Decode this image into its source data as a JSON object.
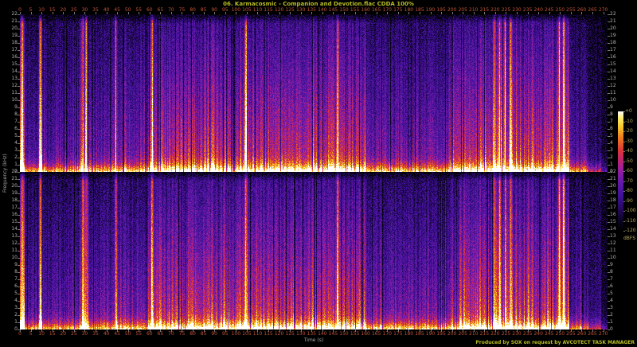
{
  "header": {
    "title": "06. Karmacosmic - Companion and Devotion.flac CDDA 100%"
  },
  "footer": {
    "credit": "Produced by SOX on request by AVCOTECT TASK MANAGER"
  },
  "colors": {
    "background": "#000000",
    "title_text": "#b8bc22",
    "time_tick_text": "#c2553a",
    "freq_tick_text": "#b0b0b0",
    "axis_label_text": "#a8a8a8",
    "colorbar_tick_text": "#b3a95e",
    "credit_text": "#b8bc22",
    "tick_mark": "#7a7a7a"
  },
  "chart_data": {
    "type": "heatmap",
    "subtype": "stereo-audio-spectrogram",
    "title": "06. Karmacosmic - Companion and Devotion.flac CDDA 100%",
    "xlabel": "Time (s)",
    "ylabel": "Frequency (kHz)",
    "x_range_s": [
      0,
      272
    ],
    "x_tick_step_s": 5,
    "x_last_labeled_tick_s": 270,
    "y_range_khz": [
      0,
      22
    ],
    "y_tick_step_khz": 1,
    "channels": 2,
    "grid": false,
    "legend_position": "right-colorbar",
    "colorbar": {
      "label": "dBFS",
      "tick_values_db": [
        0,
        -10,
        -20,
        -30,
        -40,
        -50,
        -60,
        -70,
        -80,
        -90,
        -100,
        -110,
        -120
      ]
    },
    "palette_stops": [
      [
        0.0,
        "#000000"
      ],
      [
        0.08,
        "#0a0420"
      ],
      [
        0.18,
        "#26095e"
      ],
      [
        0.3,
        "#41129b"
      ],
      [
        0.42,
        "#6a1aa8"
      ],
      [
        0.52,
        "#9c1f9b"
      ],
      [
        0.6,
        "#c22667"
      ],
      [
        0.68,
        "#dd3935"
      ],
      [
        0.78,
        "#ef7b1d"
      ],
      [
        0.87,
        "#f6c627"
      ],
      [
        0.94,
        "#fbe96a"
      ],
      [
        1.0,
        "#ffffff"
      ]
    ],
    "envelope_segments": [
      [
        0,
        2.2,
        1.0
      ],
      [
        2.2,
        8.5,
        0.5
      ],
      [
        8.5,
        10.2,
        0.85
      ],
      [
        10.2,
        27,
        0.52
      ],
      [
        27,
        31.5,
        0.8
      ],
      [
        31.5,
        44,
        0.58
      ],
      [
        44,
        59,
        0.62
      ],
      [
        59,
        160,
        0.88
      ],
      [
        160,
        199,
        0.62
      ],
      [
        199,
        248,
        0.88
      ],
      [
        248,
        254,
        0.97
      ],
      [
        254,
        263,
        0.5
      ],
      [
        263,
        269,
        0.33
      ],
      [
        269,
        272.5,
        0.18
      ]
    ],
    "transient_times_s": [
      1.0,
      9.3,
      29.0,
      30.6,
      44.2,
      61.0,
      104.5,
      147.0,
      219.5,
      222.0,
      224.5,
      227.0,
      249.5,
      251.5
    ],
    "beat_period_s": 1.85,
    "features": [
      "energy extends to 22 kHz (lossless / CDDA 100%)",
      "very bright 0-1.5 kHz bass band across the whole track",
      "loud dense sections ~59-160 s and ~199-254 s with vertical beat striations",
      "quieter indigo bridge ~160-199 s",
      "broadband transient spikes near 9, 29, 31, 220-227 and 250-252 s",
      "track fades out around 272 s",
      "two stacked channels (left on top, right below), nearly identical"
    ]
  }
}
